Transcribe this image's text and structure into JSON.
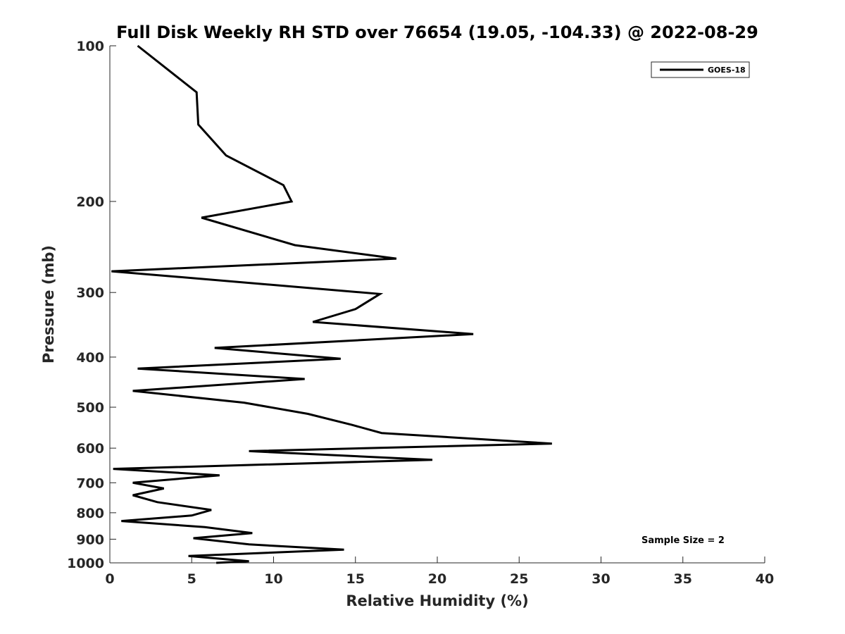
{
  "chart_data": {
    "type": "line",
    "title": "Full Disk Weekly RH STD over 76654 (19.05, -104.33) @ 2022-08-29",
    "xlabel": "Relative Humidity (%)",
    "ylabel": "Pressure (mb)",
    "xlim": [
      0,
      40
    ],
    "ylim": [
      100,
      1000
    ],
    "y_scale": "log",
    "y_reversed": true,
    "grid": false,
    "legend_position": "top-right",
    "x_ticks": [
      0,
      5,
      10,
      15,
      20,
      25,
      30,
      35,
      40
    ],
    "x_tick_labels": [
      "0",
      "5",
      "10",
      "15",
      "20",
      "25",
      "30",
      "35",
      "40"
    ],
    "y_ticks": [
      100,
      200,
      300,
      400,
      500,
      600,
      700,
      800,
      900,
      1000
    ],
    "y_tick_labels": [
      "100",
      "200",
      "300",
      "400",
      "500",
      "600",
      "700",
      "800",
      "900",
      "1000"
    ],
    "series": [
      {
        "name": "GOES-18",
        "color": "#000000",
        "rh": [
          1.7,
          5.3,
          5.4,
          7.1,
          10.6,
          11.1,
          5.6,
          11.3,
          17.5,
          0.1,
          16.5,
          15.0,
          12.4,
          22.2,
          6.4,
          14.1,
          1.7,
          11.9,
          1.4,
          8.2,
          12.1,
          14.8,
          16.6,
          27.0,
          8.5,
          19.7,
          0.2,
          6.7,
          1.4,
          3.3,
          1.4,
          2.9,
          6.2,
          5.0,
          0.7,
          5.8,
          8.7,
          5.1,
          8.5,
          14.3,
          4.8,
          8.5,
          6.5
        ],
        "pressure": [
          100,
          123,
          142,
          163,
          186,
          200,
          215,
          243,
          258,
          273,
          302,
          323,
          342,
          361,
          384,
          403,
          421,
          441,
          465,
          490,
          515,
          541,
          561,
          588,
          608,
          632,
          658,
          677,
          700,
          718,
          740,
          763,
          790,
          810,
          830,
          853,
          876,
          896,
          921,
          943,
          970,
          993,
          1013
        ]
      }
    ],
    "annotation": "Sample Size = 2"
  }
}
